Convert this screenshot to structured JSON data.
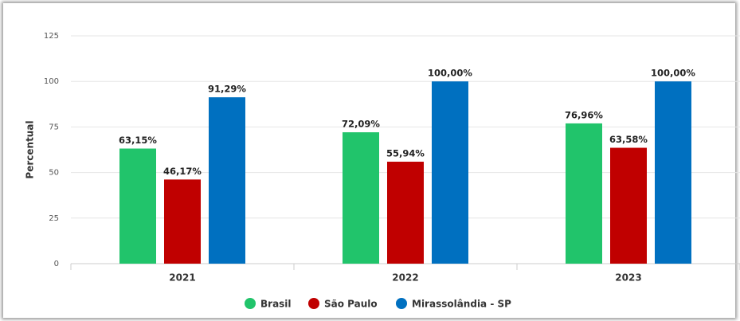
{
  "chart_data": {
    "type": "bar",
    "y_label": "Percentual",
    "categories": [
      "2021",
      "2022",
      "2023"
    ],
    "series": [
      {
        "name": "Brasil",
        "color": "#21c46b",
        "values": [
          63.15,
          72.09,
          76.96
        ],
        "value_labels": [
          "63,15%",
          "72,09%",
          "76,96%"
        ]
      },
      {
        "name": "São Paulo",
        "color": "#c00000",
        "values": [
          46.17,
          55.94,
          63.58
        ],
        "value_labels": [
          "46,17%",
          "55,94%",
          "63,58%"
        ]
      },
      {
        "name": "Mirassolândia - SP",
        "color": "#0070c0",
        "values": [
          91.29,
          100.0,
          100.0
        ],
        "value_labels": [
          "91,29%",
          "100,00%",
          "100,00%"
        ]
      }
    ],
    "ylim": [
      0,
      125
    ],
    "yticks": [
      0,
      25,
      50,
      75,
      100,
      125
    ],
    "grid": true,
    "legend": "bottom"
  }
}
